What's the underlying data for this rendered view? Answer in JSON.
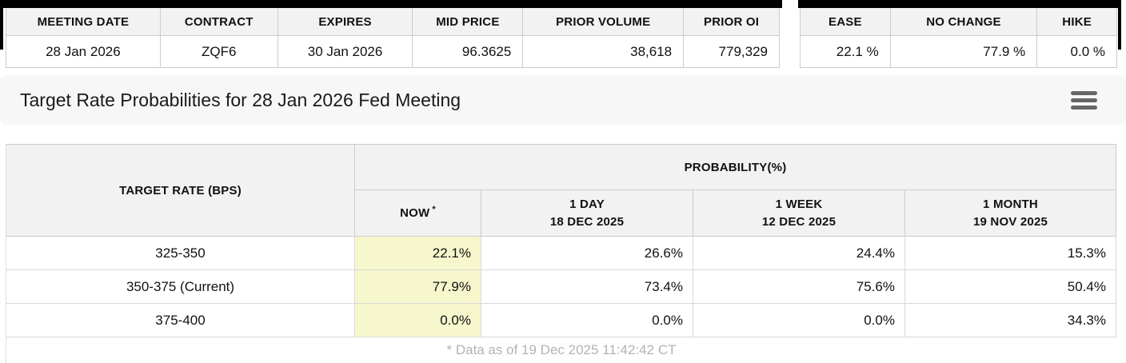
{
  "summary_table": {
    "columns": [
      "MEETING DATE",
      "CONTRACT",
      "EXPIRES",
      "MID PRICE",
      "PRIOR VOLUME",
      "PRIOR OI"
    ],
    "row": {
      "meeting_date": "28 Jan 2026",
      "contract": "ZQF6",
      "expires": "30 Jan 2026",
      "mid_price": "96.3625",
      "prior_volume": "38,618",
      "prior_oi": "779,329"
    }
  },
  "action_table": {
    "columns": [
      "EASE",
      "NO CHANGE",
      "HIKE"
    ],
    "row": {
      "ease": "22.1 %",
      "no_change": "77.9 %",
      "hike": "0.0 %"
    }
  },
  "title": "Target Rate Probabilities for 28 Jan 2026 Fed Meeting",
  "icons": {
    "menu": "hamburger-menu"
  },
  "probability_table": {
    "target_rate_header": "TARGET RATE (BPS)",
    "probability_header": "PROBABILITY(%)",
    "now_label": "NOW",
    "now_asterisk": "*",
    "period_columns": [
      {
        "label": "1 DAY",
        "date": "18 DEC 2025"
      },
      {
        "label": "1 WEEK",
        "date": "12 DEC 2025"
      },
      {
        "label": "1 MONTH",
        "date": "19 NOV 2025"
      }
    ],
    "rows": [
      {
        "target_rate": "325-350",
        "now": "22.1%",
        "day": "26.6%",
        "week": "24.4%",
        "month": "15.3%"
      },
      {
        "target_rate": "350-375 (Current)",
        "now": "77.9%",
        "day": "73.4%",
        "week": "75.6%",
        "month": "50.4%"
      },
      {
        "target_rate": "375-400",
        "now": "0.0%",
        "day": "0.0%",
        "week": "0.0%",
        "month": "34.3%"
      }
    ],
    "footnote": "* Data as of 19 Dec 2025 11:42:42 CT"
  },
  "colors": {
    "highlight_yellow": "#f7f7cd",
    "header_gray": "#f2f2f2",
    "title_bar_gray": "#f7f7f7",
    "border_gray": "#cccccc",
    "footnote_gray": "#b3b3b3",
    "top_bar_black": "#000000"
  }
}
